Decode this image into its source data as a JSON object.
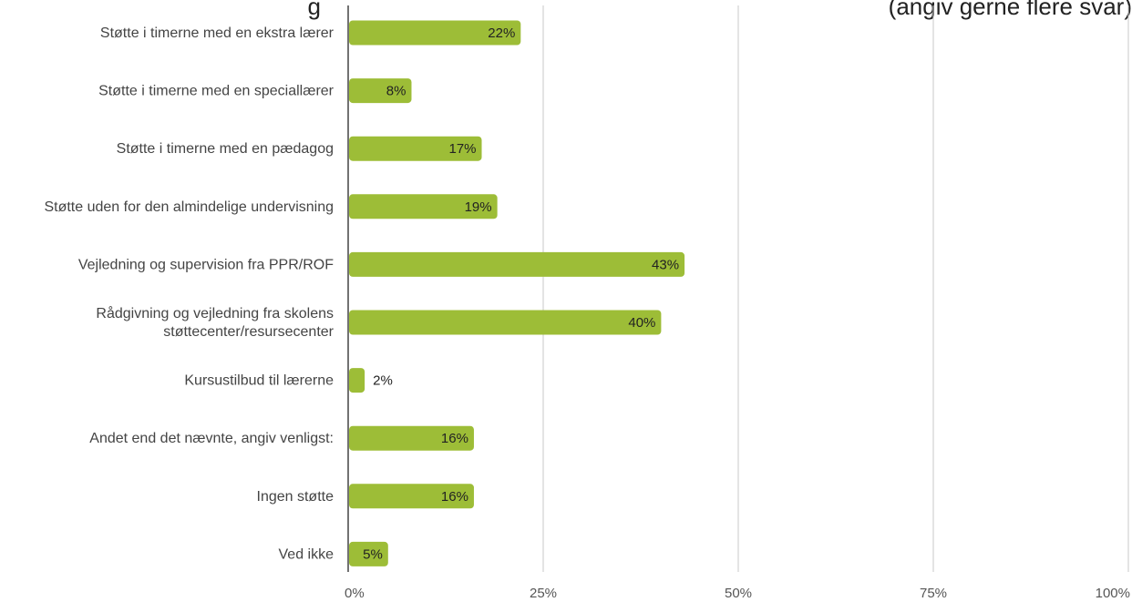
{
  "header": {
    "title_fragment_left": "g",
    "title_fragment_right": "(angiv gerne flere svar)"
  },
  "chart_data": {
    "type": "bar",
    "orientation": "horizontal",
    "categories": [
      "Støtte i timerne med en ekstra lærer",
      "Støtte i timerne med en speciallærer",
      "Støtte i timerne med en pædagog",
      "Støtte uden for den almindelige undervisning",
      "Vejledning og supervision fra PPR/ROF",
      "Rådgivning og vejledning fra skolens støttecenter/resursecenter",
      "Kursustilbud til lærerne",
      "Andet end det nævnte, angiv venligst:",
      "Ingen støtte",
      "Ved ikke"
    ],
    "category_lines": [
      [
        "Støtte i timerne med en ekstra lærer"
      ],
      [
        "Støtte i timerne med en speciallærer"
      ],
      [
        "Støtte i timerne med en pædagog"
      ],
      [
        "Støtte uden for den almindelige undervisning"
      ],
      [
        "Vejledning og supervision fra PPR/ROF"
      ],
      [
        "Rådgivning og vejledning fra skolens",
        "støttecenter/resursecenter"
      ],
      [
        "Kursustilbud til lærerne"
      ],
      [
        "Andet end det nævnte, angiv venligst:"
      ],
      [
        "Ingen støtte"
      ],
      [
        "Ved ikke"
      ]
    ],
    "values": [
      22,
      8,
      17,
      19,
      43,
      40,
      2,
      16,
      16,
      5
    ],
    "value_labels": [
      "22%",
      "8%",
      "17%",
      "19%",
      "43%",
      "40%",
      "2%",
      "16%",
      "16%",
      "5%"
    ],
    "xlim": [
      0,
      100
    ],
    "xticks": [
      0,
      25,
      50,
      75,
      100
    ],
    "xtick_labels": [
      "0%",
      "25%",
      "50%",
      "75%",
      "100%"
    ],
    "grid": true,
    "colors": {
      "bar": "#9dbd37",
      "grid": "#c8c8c8",
      "axis": "#444444"
    }
  }
}
